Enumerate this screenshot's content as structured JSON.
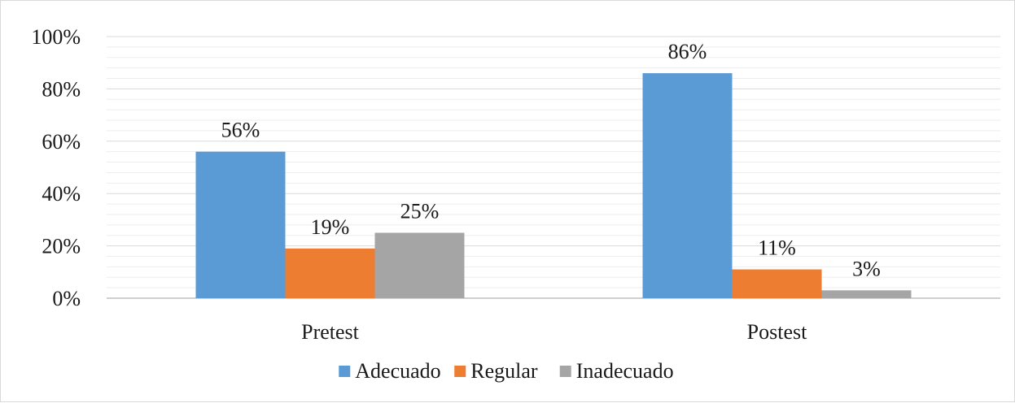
{
  "chart_data": {
    "type": "bar",
    "categories": [
      "Pretest",
      "Postest"
    ],
    "series": [
      {
        "name": "Adecuado",
        "color": "#5b9bd5",
        "values": [
          56,
          86
        ],
        "labels": [
          "56%",
          "86%"
        ]
      },
      {
        "name": "Regular",
        "color": "#ed7d31",
        "values": [
          19,
          11
        ],
        "labels": [
          "19%",
          "11%"
        ]
      },
      {
        "name": "Inadecuado",
        "color": "#a5a5a5",
        "values": [
          25,
          3
        ],
        "labels": [
          "25%",
          "3%"
        ]
      }
    ],
    "y_ticks": [
      "0%",
      "20%",
      "40%",
      "60%",
      "80%",
      "100%"
    ],
    "ylim": [
      0,
      100
    ],
    "grid": true,
    "legend_position": "bottom"
  }
}
